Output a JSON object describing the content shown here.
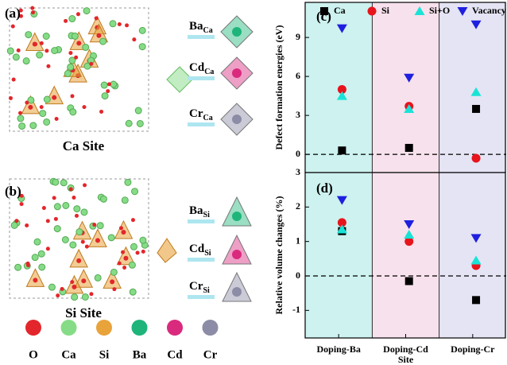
{
  "figure": {
    "panel_a": "(a)",
    "site_a": "Ca Site",
    "panel_b": "(b)",
    "site_b": "Si Site",
    "dopants": [
      {
        "main": "Ba",
        "sub": "Ca"
      },
      {
        "main": "Cd",
        "sub": "Ca"
      },
      {
        "main": "Cr",
        "sub": "Ca"
      },
      {
        "main": "Ba",
        "sub": "Si"
      },
      {
        "main": "Cd",
        "sub": "Si"
      },
      {
        "main": "Cr",
        "sub": "Si"
      }
    ],
    "ions": [
      {
        "label": "O",
        "color": "#e3262b"
      },
      {
        "label": "Ca",
        "color": "#86dc86"
      },
      {
        "label": "Si",
        "color": "#e8a33a"
      },
      {
        "label": "Ba",
        "color": "#1fb57a"
      },
      {
        "label": "Cd",
        "color": "#d92a7e"
      },
      {
        "label": "Cr",
        "color": "#8c8ca6"
      }
    ]
  },
  "chart_data": [
    {
      "type": "scatter",
      "panel": "(c)",
      "y_label": "Defect formation energies (eV)",
      "categories": [
        "Doping-Ba",
        "Doping-Cd",
        "Doping-Cr"
      ],
      "band_colors": [
        "#cdf2ef",
        "#f7e1ec",
        "#e4e4f4"
      ],
      "ylim": [
        -1.4,
        11.7
      ],
      "yticks": [
        0,
        3,
        6,
        9
      ],
      "hline": 0,
      "legend": true,
      "series": [
        {
          "name": "Ca",
          "color": "#000000",
          "marker": "square",
          "values": [
            0.3,
            0.5,
            3.5
          ]
        },
        {
          "name": "Si",
          "color": "#e8141c",
          "marker": "circle",
          "values": [
            5.0,
            3.7,
            -0.3
          ]
        },
        {
          "name": "Si+O",
          "color": "#19e3d6",
          "marker": "triangle",
          "values": [
            4.5,
            3.5,
            4.8
          ]
        },
        {
          "name": "Vacancy",
          "color": "#1f1fe0",
          "marker": "triangle-down",
          "values": [
            9.7,
            5.9,
            10.0
          ]
        }
      ]
    },
    {
      "type": "scatter",
      "panel": "(d)",
      "y_label": "Relative volume changes (%)",
      "x_label": "Site",
      "categories": [
        "Doping-Ba",
        "Doping-Cd",
        "Doping-Cr"
      ],
      "band_colors": [
        "#cdf2ef",
        "#f7e1ec",
        "#e4e4f4"
      ],
      "ylim": [
        -1.8,
        3
      ],
      "yticks": [
        -1,
        0,
        1,
        2,
        3
      ],
      "hline": 0,
      "legend": false,
      "series": [
        {
          "name": "Ca",
          "color": "#000000",
          "marker": "square",
          "values": [
            1.3,
            -0.15,
            -0.7
          ]
        },
        {
          "name": "Si",
          "color": "#e8141c",
          "marker": "circle",
          "values": [
            1.55,
            1.0,
            0.3
          ]
        },
        {
          "name": "Si+O",
          "color": "#19e3d6",
          "marker": "triangle",
          "values": [
            1.35,
            1.2,
            0.45
          ]
        },
        {
          "name": "Vacancy",
          "color": "#1f1fe0",
          "marker": "triangle-down",
          "values": [
            2.2,
            1.5,
            1.1
          ]
        }
      ]
    }
  ]
}
